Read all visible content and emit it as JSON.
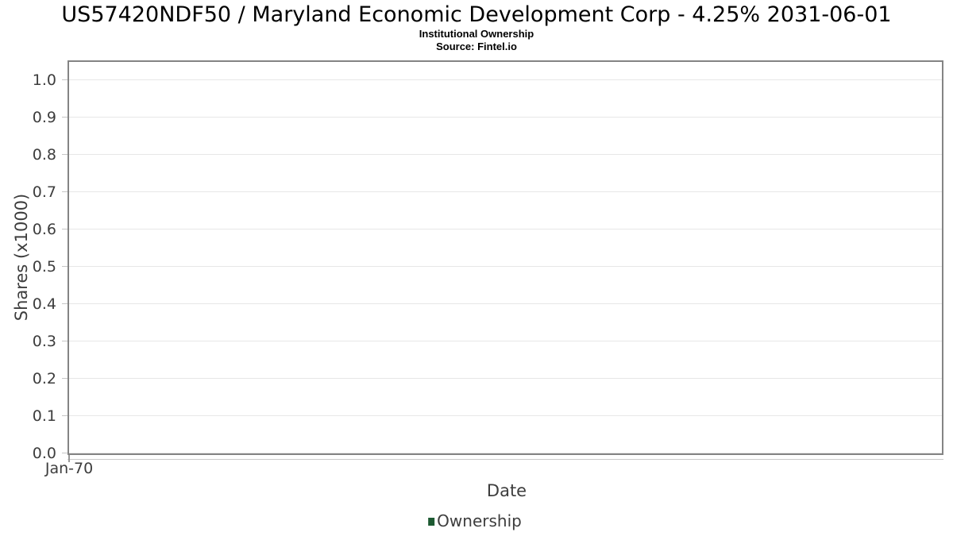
{
  "header": {
    "title": "US57420NDF50 / Maryland Economic Development Corp - 4.25% 2031-06-01",
    "subtitle": "Institutional Ownership",
    "source": "Source: Fintel.io"
  },
  "chart_data": {
    "type": "line",
    "title": "US57420NDF50 / Maryland Economic Development Corp - 4.25% 2031-06-01",
    "subtitle": "Institutional Ownership",
    "source": "Source: Fintel.io",
    "xlabel": "Date",
    "ylabel": "Shares (x1000)",
    "x_ticks": [
      "Jan-70"
    ],
    "y_ticks": [
      "0.0",
      "0.1",
      "0.2",
      "0.3",
      "0.4",
      "0.5",
      "0.6",
      "0.7",
      "0.8",
      "0.9",
      "1.0"
    ],
    "ylim": [
      0,
      1.05
    ],
    "xlim_note": "single tick at left origin",
    "grid": true,
    "legend_position": "bottom",
    "series": [
      {
        "name": "Ownership",
        "color": "#1d5a32",
        "x": [],
        "values": []
      }
    ]
  },
  "colors": {
    "background": "#ffffff",
    "plot_border": "#848484",
    "gridline": "#e7e7e7",
    "tick_mark": "#c6c6c6",
    "text_primary": "#000000",
    "text_axis": "#3d3d3d",
    "legend_swatch": "#1d5a32"
  }
}
